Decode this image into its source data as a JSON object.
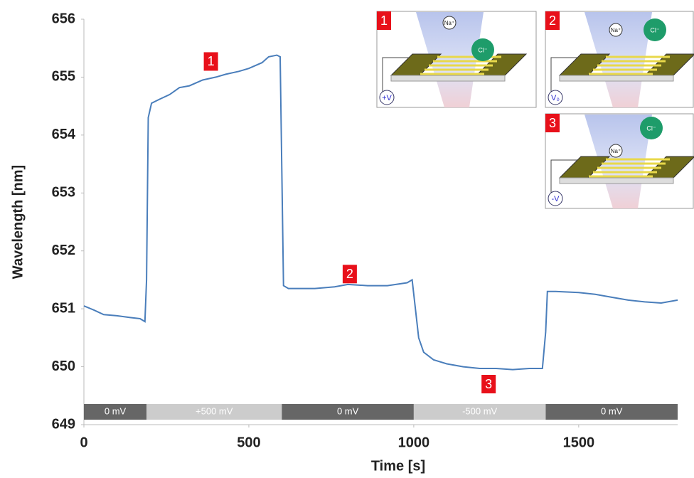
{
  "chart_data": {
    "type": "line",
    "x_label": "Time [s]",
    "y_label": "Wavelength [nm]",
    "xlim": [
      0,
      1800
    ],
    "ylim": [
      649,
      656
    ],
    "xticks": [
      0,
      500,
      1000,
      1500
    ],
    "yticks": [
      649,
      650,
      651,
      652,
      653,
      654,
      655,
      656
    ],
    "series": [
      {
        "color": "#4a7ebb",
        "x": [
          0,
          30,
          60,
          100,
          140,
          170,
          185,
          190,
          195,
          205,
          230,
          260,
          290,
          320,
          360,
          400,
          430,
          470,
          500,
          540,
          560,
          585,
          595,
          605,
          620,
          700,
          760,
          800,
          860,
          920,
          980,
          995,
          1005,
          1015,
          1030,
          1060,
          1100,
          1150,
          1200,
          1250,
          1300,
          1350,
          1390,
          1400,
          1405,
          1430,
          1500,
          1550,
          1600,
          1650,
          1700,
          1750,
          1800
        ],
        "values": [
          651.05,
          650.98,
          650.9,
          650.88,
          650.85,
          650.83,
          650.78,
          651.5,
          654.3,
          654.55,
          654.62,
          654.7,
          654.82,
          654.85,
          654.95,
          655.0,
          655.05,
          655.1,
          655.15,
          655.25,
          655.35,
          655.38,
          655.35,
          651.4,
          651.35,
          651.35,
          651.38,
          651.42,
          651.4,
          651.4,
          651.45,
          651.5,
          651.0,
          650.5,
          650.25,
          650.12,
          650.05,
          650.0,
          649.97,
          649.97,
          649.95,
          649.97,
          649.97,
          650.6,
          651.3,
          651.3,
          651.28,
          651.25,
          651.2,
          651.15,
          651.12,
          651.1,
          651.15
        ]
      }
    ],
    "bands": [
      {
        "label": "0 mV",
        "start": 0,
        "end": 190,
        "color": "#666666"
      },
      {
        "label": "+500 mV",
        "start": 190,
        "end": 600,
        "color": "#cccccc"
      },
      {
        "label": "0 mV",
        "start": 600,
        "end": 1000,
        "color": "#666666"
      },
      {
        "label": "-500 mV",
        "start": 1000,
        "end": 1400,
        "color": "#cccccc"
      },
      {
        "label": "0 mV",
        "start": 1400,
        "end": 1800,
        "color": "#666666"
      }
    ],
    "annotations": [
      {
        "text": "1",
        "x": 385,
        "y": 655.27
      },
      {
        "text": "2",
        "x": 806,
        "y": 651.6
      },
      {
        "text": "3",
        "x": 1227,
        "y": 649.7
      }
    ],
    "insets": [
      {
        "label": "1",
        "cation": "Na⁺",
        "anion": "Cl⁻",
        "voltage": "+V"
      },
      {
        "label": "2",
        "cation": "Na⁺",
        "anion": "Cl⁻",
        "voltage": "V₀"
      },
      {
        "label": "3",
        "cation": "Na⁺",
        "anion": "Cl⁻",
        "voltage": "-V"
      }
    ]
  }
}
